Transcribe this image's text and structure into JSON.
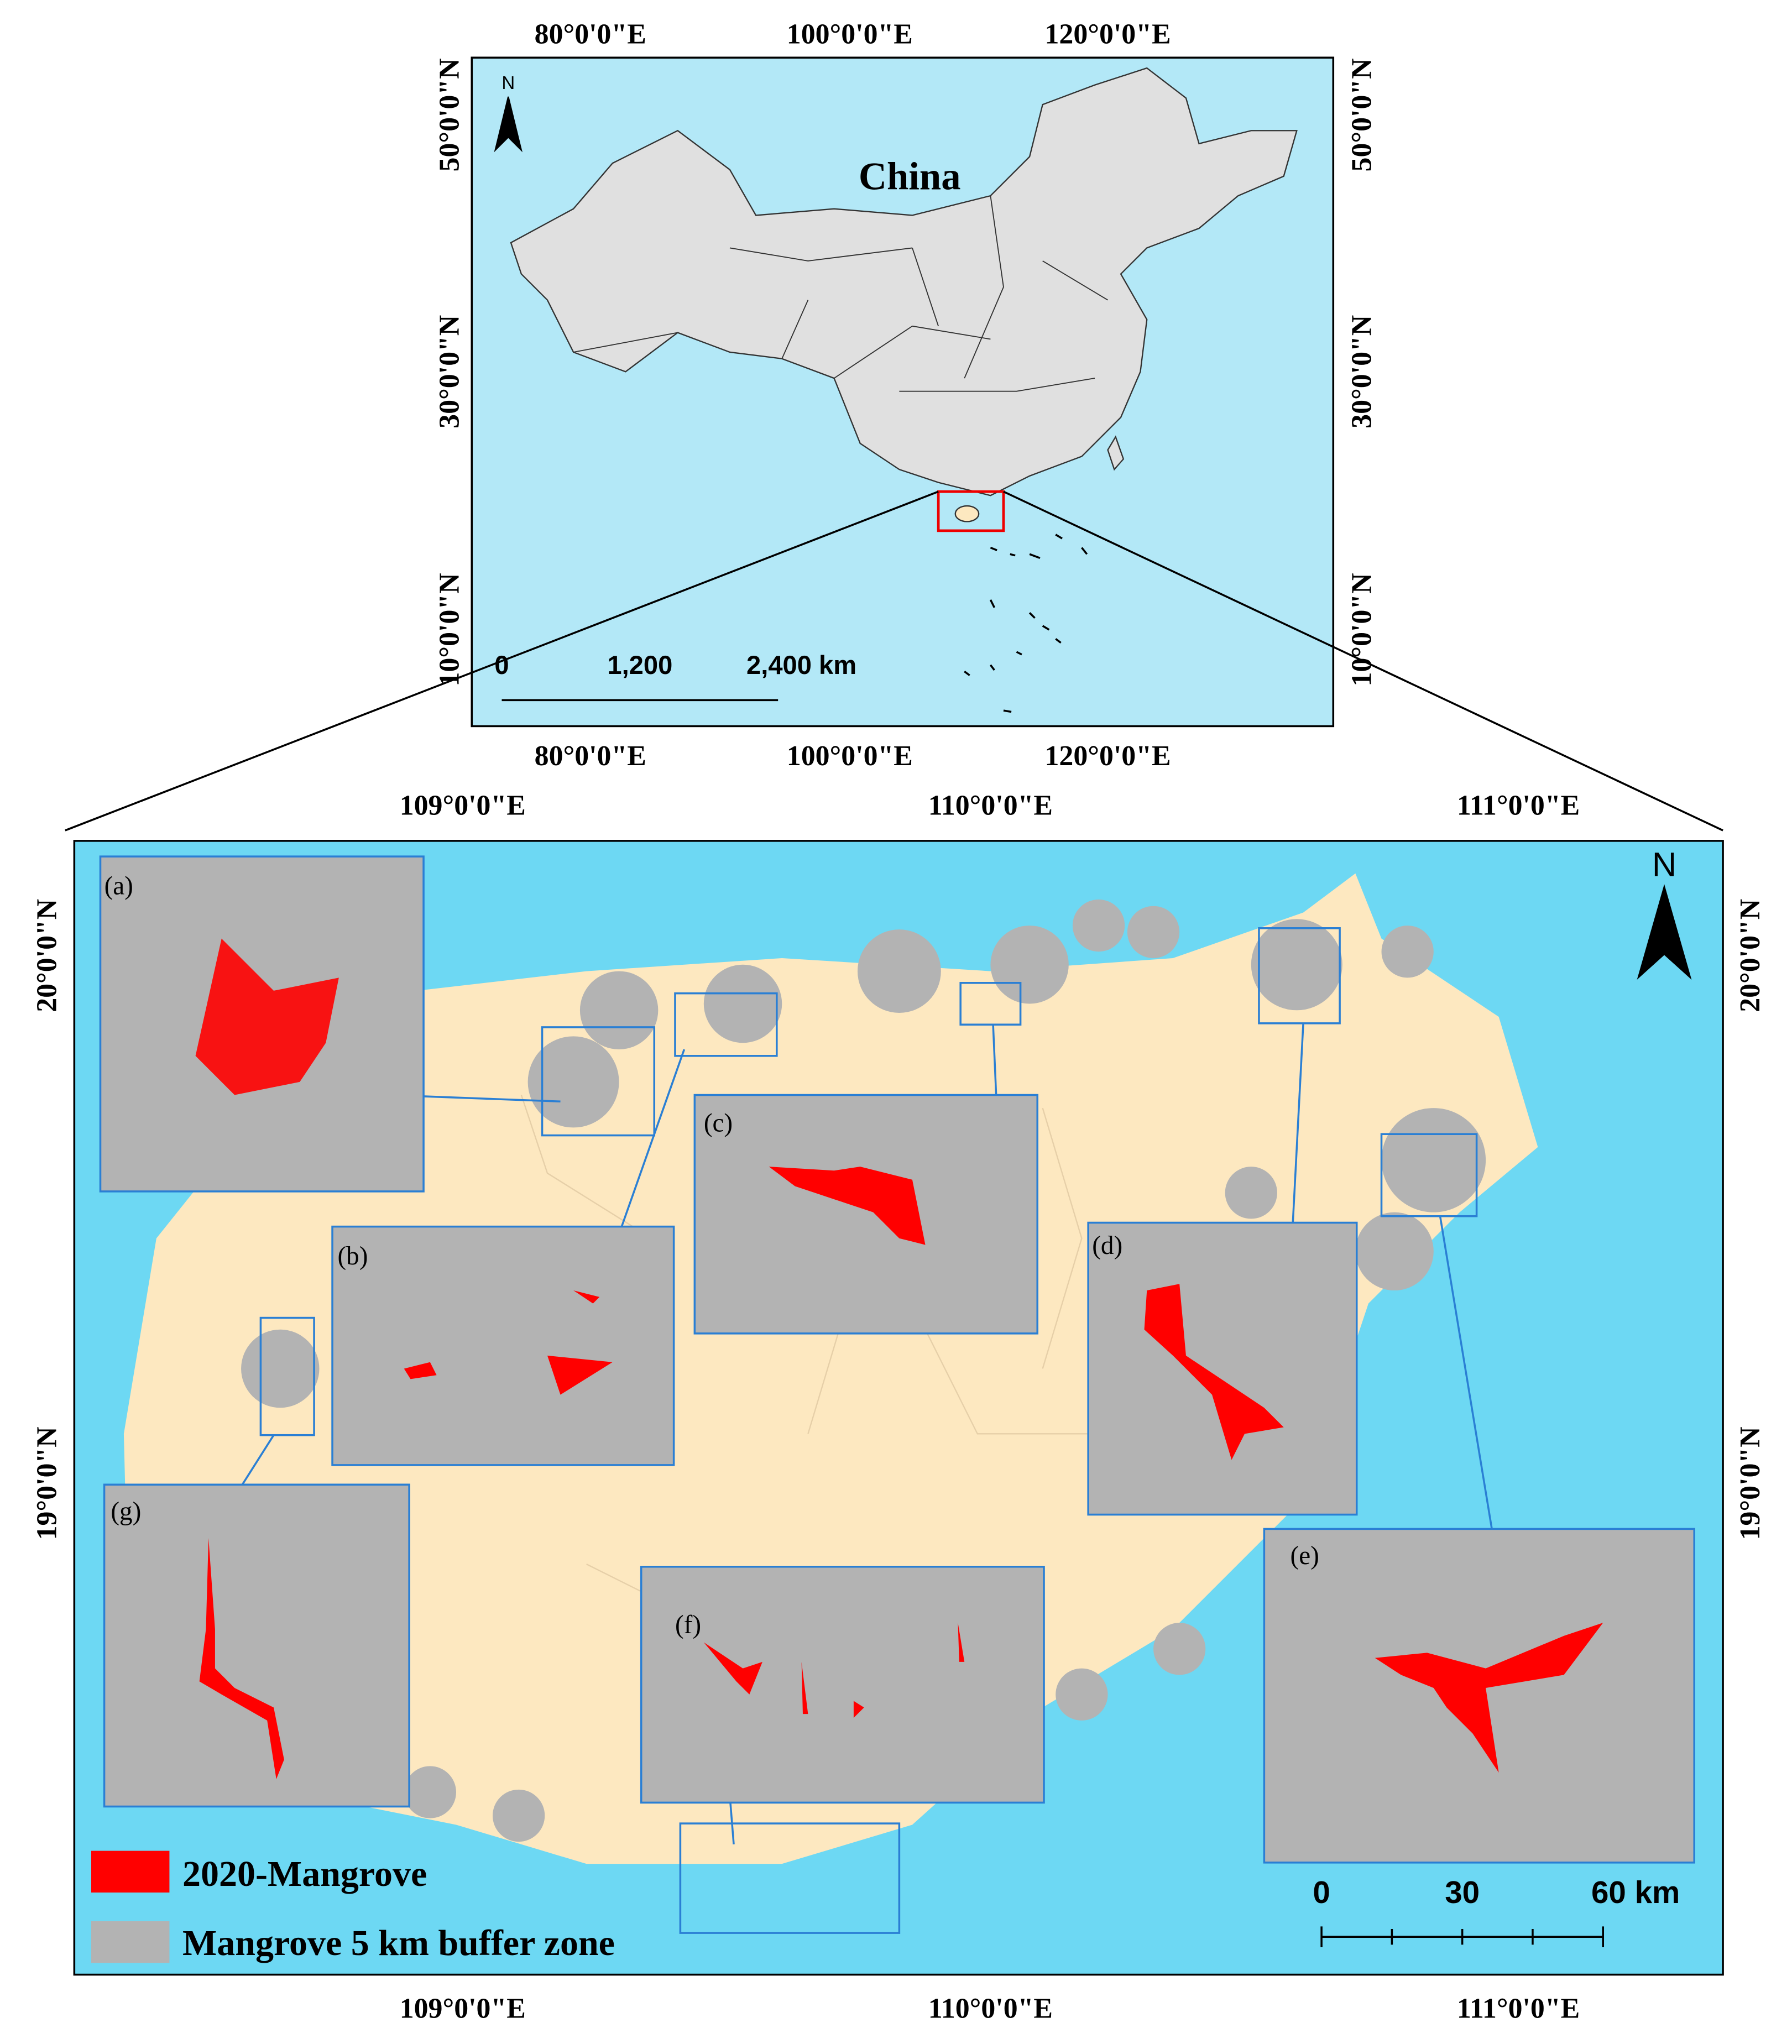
{
  "overview": {
    "title": "China",
    "north": "N",
    "top_labels": [
      "80°0'0\"E",
      "100°0'0\"E",
      "120°0'0\"E"
    ],
    "bottom_labels": [
      "80°0'0\"E",
      "100°0'0\"E",
      "120°0'0\"E"
    ],
    "left_labels": [
      "50°0'0\"N",
      "30°0'0\"N",
      "10°0'0\"N"
    ],
    "right_labels": [
      "50°0'0\"N",
      "30°0'0\"N",
      "10°0'0\"N"
    ],
    "scale": [
      "0",
      "1,200",
      "2,400 km"
    ]
  },
  "main": {
    "north": "N",
    "top_labels": [
      "109°0'0\"E",
      "110°0'0\"E",
      "111°0'0\"E"
    ],
    "bottom_labels": [
      "109°0'0\"E",
      "110°0'0\"E",
      "111°0'0\"E"
    ],
    "left_labels": [
      "20°0'0\"N",
      "19°0'0\"N"
    ],
    "right_labels": [
      "20°0'0\"N",
      "19°0'0\"N"
    ],
    "insets": [
      "(a)",
      "(b)",
      "(c)",
      "(d)",
      "(e)",
      "(f)",
      "(g)"
    ],
    "scale": [
      "0",
      "30",
      "60 km"
    ]
  },
  "legend": [
    {
      "label": "2020-Mangrove",
      "color": "#ff0000"
    },
    {
      "label": "Mangrove 5 km buffer zone",
      "color": "#b3b3b3"
    }
  ]
}
